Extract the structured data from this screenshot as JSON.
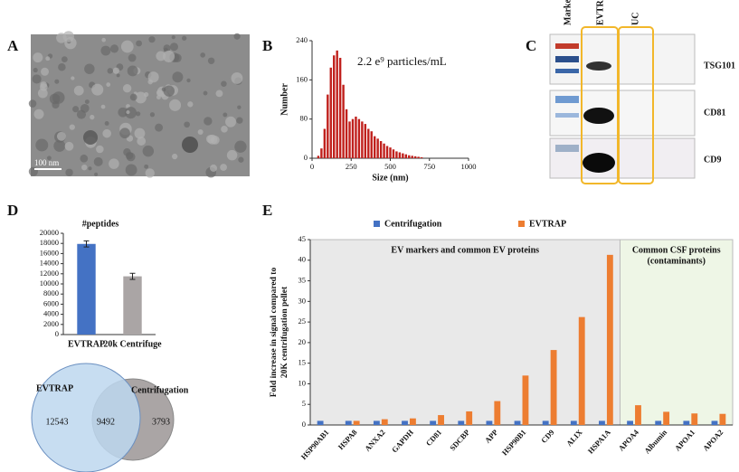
{
  "panel_labels": [
    "A",
    "B",
    "C",
    "D",
    "E"
  ],
  "panel_a": {
    "scale_bar": "100 nm"
  },
  "panel_c": {
    "lanes": [
      "Marker",
      "EVTRAP",
      "UC"
    ],
    "proteins": [
      "TSG101",
      "CD81",
      "CD9"
    ]
  },
  "chart_data": [
    {
      "type": "bar",
      "annotation": "2.2 e⁹ particles/mL",
      "ylabel": "Number",
      "xlabel": "Size (nm)",
      "color": "#c0201c",
      "x": [
        40,
        60,
        80,
        100,
        120,
        140,
        160,
        180,
        200,
        220,
        240,
        260,
        280,
        300,
        320,
        340,
        360,
        380,
        400,
        420,
        440,
        460,
        480,
        500,
        520,
        540,
        560,
        580,
        600,
        620,
        640,
        660,
        680,
        700
      ],
      "values": [
        5,
        20,
        60,
        130,
        185,
        210,
        220,
        205,
        150,
        100,
        75,
        80,
        85,
        80,
        75,
        70,
        60,
        55,
        45,
        40,
        35,
        30,
        25,
        22,
        18,
        14,
        12,
        10,
        8,
        6,
        5,
        4,
        3,
        2
      ],
      "xlim": [
        0,
        1000
      ],
      "xticks": [
        0,
        250,
        500,
        750,
        1000
      ],
      "ylim": [
        0,
        240
      ],
      "yticks": [
        0,
        80,
        160,
        240
      ]
    },
    {
      "type": "bar",
      "title": "#peptides",
      "categories": [
        "EVTRAP",
        "20k Centrifuge"
      ],
      "values": [
        17900,
        11500
      ],
      "errors": [
        600,
        600
      ],
      "colors": [
        "#4472c4",
        "#aaa5a5"
      ],
      "ylim": [
        0,
        20000
      ],
      "yticks": [
        0,
        2000,
        4000,
        6000,
        8000,
        10000,
        12000,
        14000,
        16000,
        18000,
        20000
      ]
    },
    {
      "type": "venn",
      "sets": [
        {
          "name": "EVTRAP",
          "color": "#bdd7ee"
        },
        {
          "name": "Centrifugation",
          "color": "#aaa5a5"
        }
      ],
      "values": [
        12543,
        9492,
        3793
      ]
    },
    {
      "type": "bar",
      "ylabel": [
        "Fold increase in signal compared to",
        "20K centrifugation pellet"
      ],
      "categories": [
        "HSP90AB1",
        "HSPA8",
        "ANXA2",
        "GAPDH",
        "CD81",
        "SDCBP",
        "APP",
        "HSP90B1",
        "CD9",
        "ALIX",
        "HSPA1A",
        "APOA4",
        "Albumin",
        "APOA1",
        "APOA2"
      ],
      "series": [
        {
          "name": "Centrifugation",
          "color": "#4472c4",
          "values": [
            1,
            1,
            1,
            1,
            1,
            1,
            1,
            1,
            1,
            1,
            1,
            1,
            1,
            1,
            1
          ]
        },
        {
          "name": "EVTRAP",
          "color": "#ed7d31",
          "values": [
            0,
            1,
            1.4,
            1.6,
            2.4,
            3.3,
            5.8,
            12,
            18.2,
            26.2,
            41.3,
            4.8,
            3.2,
            2.8,
            2.7
          ]
        }
      ],
      "regions": [
        {
          "label": [
            "EV markers and common EV proteins"
          ],
          "start": "HSP90AB1",
          "end": "HSPA1A",
          "color": "#e9e9e9"
        },
        {
          "label": [
            "Common CSF proteins",
            "(contaminants)"
          ],
          "start": "APOA4",
          "end": "APOA2",
          "color": "#eef6e6"
        }
      ],
      "ylim": [
        0,
        45
      ],
      "yticks": [
        0,
        5,
        10,
        15,
        20,
        25,
        30,
        35,
        40,
        45
      ]
    }
  ]
}
